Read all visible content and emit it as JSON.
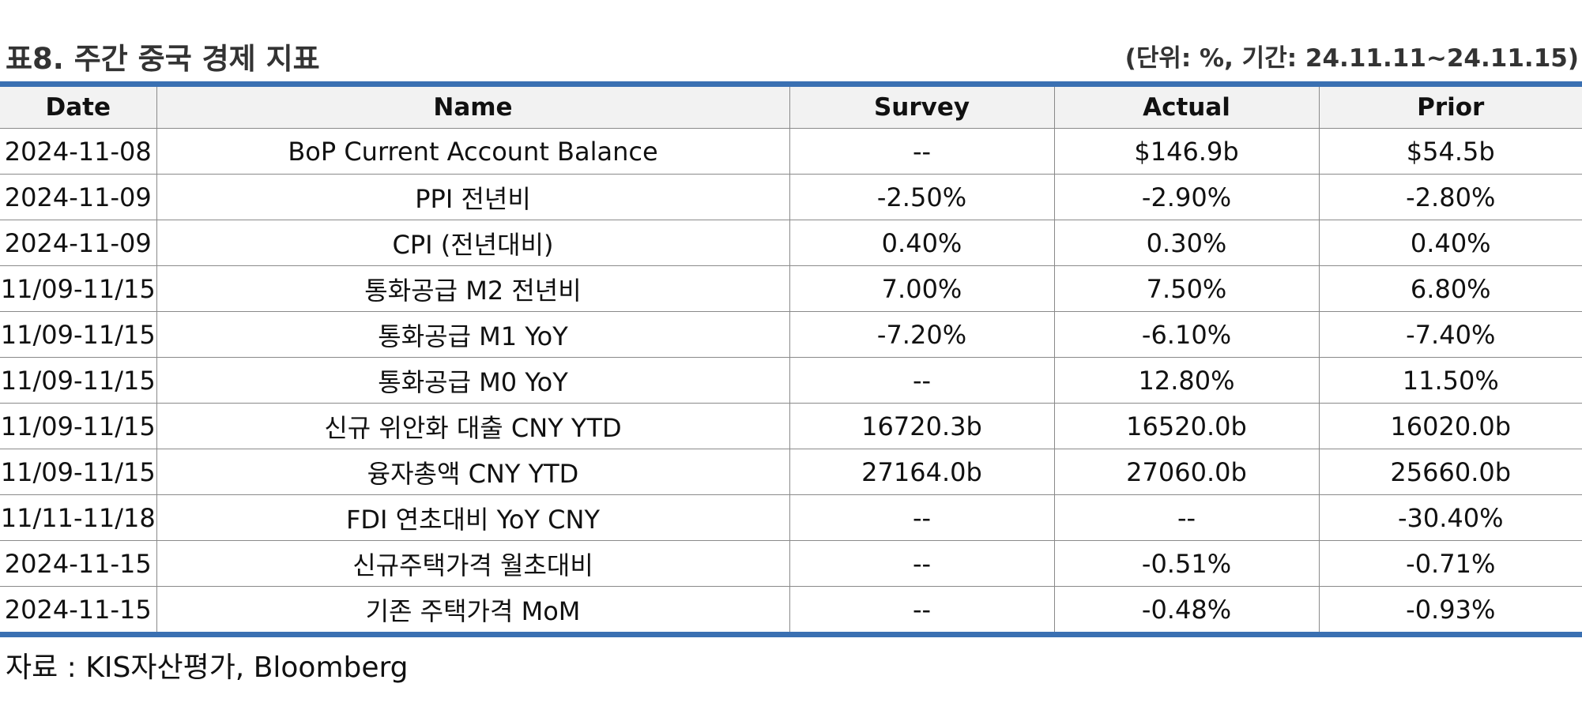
{
  "header": {
    "title": "표8. 주간 중국 경제 지표",
    "unit": "(단위: %, 기간: 24.11.11~24.11.15)"
  },
  "table": {
    "columns": [
      "Date",
      "Name",
      "Survey",
      "Actual",
      "Prior"
    ],
    "rows": [
      [
        "2024-11-08",
        "BoP Current Account Balance",
        "--",
        "$146.9b",
        "$54.5b"
      ],
      [
        "2024-11-09",
        "PPI 전년비",
        "-2.50%",
        "-2.90%",
        "-2.80%"
      ],
      [
        "2024-11-09",
        "CPI (전년대비)",
        "0.40%",
        "0.30%",
        "0.40%"
      ],
      [
        "11/09-11/15",
        "통화공급 M2 전년비",
        "7.00%",
        "7.50%",
        "6.80%"
      ],
      [
        "11/09-11/15",
        "통화공급 M1 YoY",
        "-7.20%",
        "-6.10%",
        "-7.40%"
      ],
      [
        "11/09-11/15",
        "통화공급 M0 YoY",
        "--",
        "12.80%",
        "11.50%"
      ],
      [
        "11/09-11/15",
        "신규 위안화 대출 CNY YTD",
        "16720.3b",
        "16520.0b",
        "16020.0b"
      ],
      [
        "11/09-11/15",
        "융자총액 CNY YTD",
        "27164.0b",
        "27060.0b",
        "25660.0b"
      ],
      [
        "11/11-11/18",
        "FDI 연초대비 YoY CNY",
        "--",
        "--",
        "-30.40%"
      ],
      [
        "2024-11-15",
        "신규주택가격 월초대비",
        "--",
        "-0.51%",
        "-0.71%"
      ],
      [
        "2024-11-15",
        "기존 주택가격 MoM",
        "--",
        "-0.48%",
        "-0.93%"
      ]
    ]
  },
  "footer": {
    "source": "자료 : KIS자산평가, Bloomberg"
  },
  "colors": {
    "accent_rule": "#3a70b2",
    "header_bg": "#f2f2f2",
    "grid": "#8a8a8a"
  }
}
